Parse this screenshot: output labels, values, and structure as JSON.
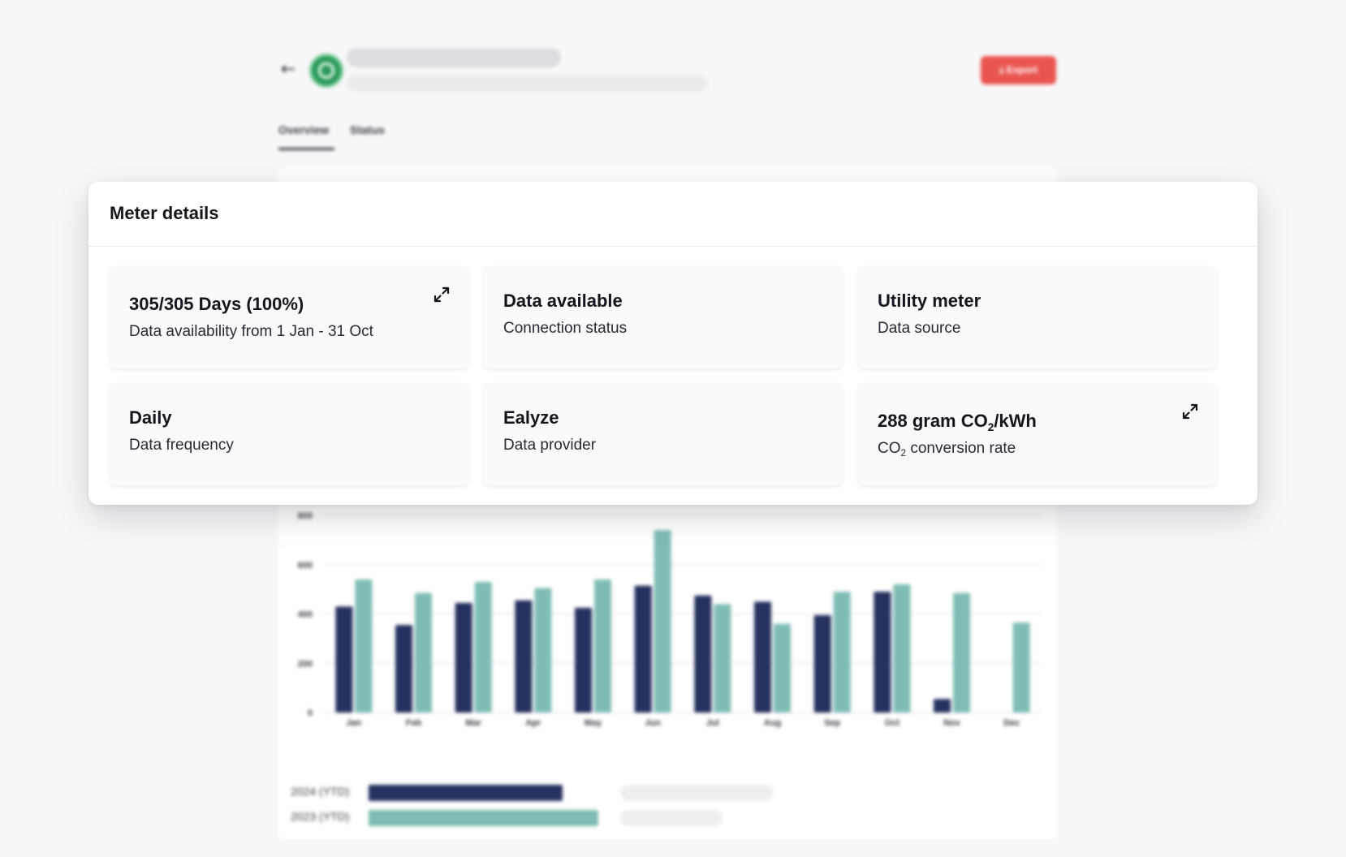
{
  "header": {
    "back_icon": "arrow-left-icon",
    "avatar_icon": "meter-avatar-icon",
    "export_label": "⤓ Export",
    "brand_colors": {
      "avatar": "#2f9a5c",
      "export": "#ea5550"
    }
  },
  "tabs": [
    {
      "label": "Overview",
      "active": true
    },
    {
      "label": "Status",
      "active": false
    }
  ],
  "modal": {
    "title": "Meter details",
    "tiles": [
      {
        "title": "305/305 Days (100%)",
        "subtitle": "Data availability from 1 Jan - 31 Oct",
        "expandable": true
      },
      {
        "title": "Data available",
        "subtitle": "Connection status",
        "expandable": false
      },
      {
        "title": "Utility meter",
        "subtitle": "Data source",
        "expandable": false
      },
      {
        "title": "Daily",
        "subtitle": "Data frequency",
        "expandable": false
      },
      {
        "title": "Ealyze",
        "subtitle": "Data provider",
        "expandable": false
      },
      {
        "title_parts": [
          "288 gram CO",
          "2",
          "/kWh"
        ],
        "subtitle_parts": [
          "CO",
          "2",
          " conversion rate"
        ],
        "expandable": true
      }
    ]
  },
  "chart_data": {
    "type": "bar",
    "categories": [
      "Jan",
      "Feb",
      "Mar",
      "Apr",
      "May",
      "Jun",
      "Jul",
      "Aug",
      "Sep",
      "Oct",
      "Nov",
      "Dec"
    ],
    "series": [
      {
        "values": [
          430,
          355,
          445,
          455,
          425,
          515,
          475,
          450,
          395,
          490,
          55,
          0
        ],
        "color": "#27305f"
      },
      {
        "values": [
          540,
          485,
          530,
          505,
          540,
          740,
          440,
          360,
          490,
          520,
          485,
          365
        ],
        "color": "#7fbdb4"
      }
    ],
    "yticks": [
      "0",
      "200",
      "400",
      "600",
      "800"
    ],
    "ylim": [
      0,
      800
    ],
    "grid": true
  },
  "totals": [
    {
      "label": "2024 (YTD)",
      "fraction": 0.46,
      "color": "#27305f"
    },
    {
      "label": "2023 (YTD)",
      "fraction": 0.545,
      "color": "#7fbdb4"
    }
  ]
}
